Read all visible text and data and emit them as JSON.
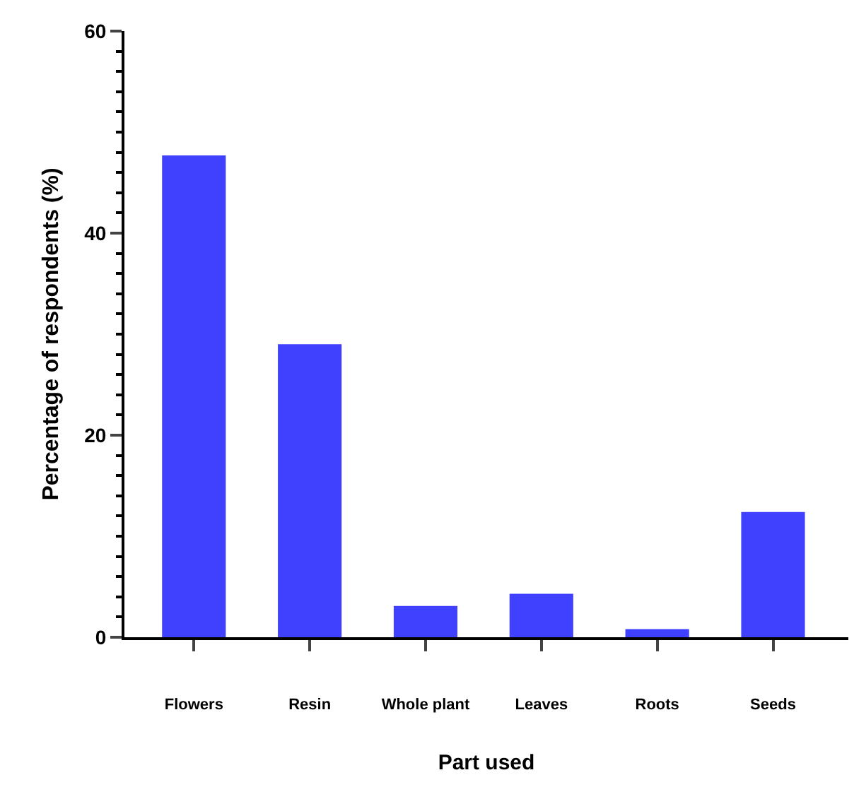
{
  "chart_data": {
    "type": "bar",
    "xlabel": "Part used",
    "ylabel": "Percentage of respondents (%)",
    "categories": [
      "Flowers",
      "Resin",
      "Whole plant",
      "Leaves",
      "Roots",
      "Seeds"
    ],
    "values": [
      47.7,
      29,
      3.1,
      4.3,
      0.8,
      12.4
    ],
    "color": "#4040ff",
    "ylim": [
      0,
      60
    ],
    "yticks": [
      0,
      {
        "value": 2,
        "label": null
      },
      {
        "value": 4,
        "label": null
      },
      {
        "value": 6,
        "label": null
      },
      {
        "value": 8,
        "label": null
      },
      {
        "value": 10,
        "label": null
      },
      {
        "value": 12,
        "label": null
      },
      {
        "value": 14,
        "label": null
      },
      {
        "value": 16,
        "label": null
      },
      {
        "value": 18,
        "label": null
      },
      20,
      {
        "value": 22,
        "label": null
      },
      {
        "value": 24,
        "label": null
      },
      {
        "value": 26,
        "label": null
      },
      {
        "value": 28,
        "label": null
      },
      {
        "value": 30,
        "label": null
      },
      {
        "value": 32,
        "label": null
      },
      {
        "value": 34,
        "label": null
      },
      {
        "value": 36,
        "label": null
      },
      {
        "value": 38,
        "label": null
      },
      40,
      {
        "value": 42,
        "label": null
      },
      {
        "value": 44,
        "label": null
      },
      {
        "value": 46,
        "label": null
      },
      {
        "value": 48,
        "label": null
      },
      {
        "value": 50,
        "label": null
      },
      {
        "value": 52,
        "label": null
      },
      {
        "value": 54,
        "label": null
      },
      {
        "value": 56,
        "label": null
      },
      {
        "value": 58,
        "label": null
      },
      60
    ]
  }
}
